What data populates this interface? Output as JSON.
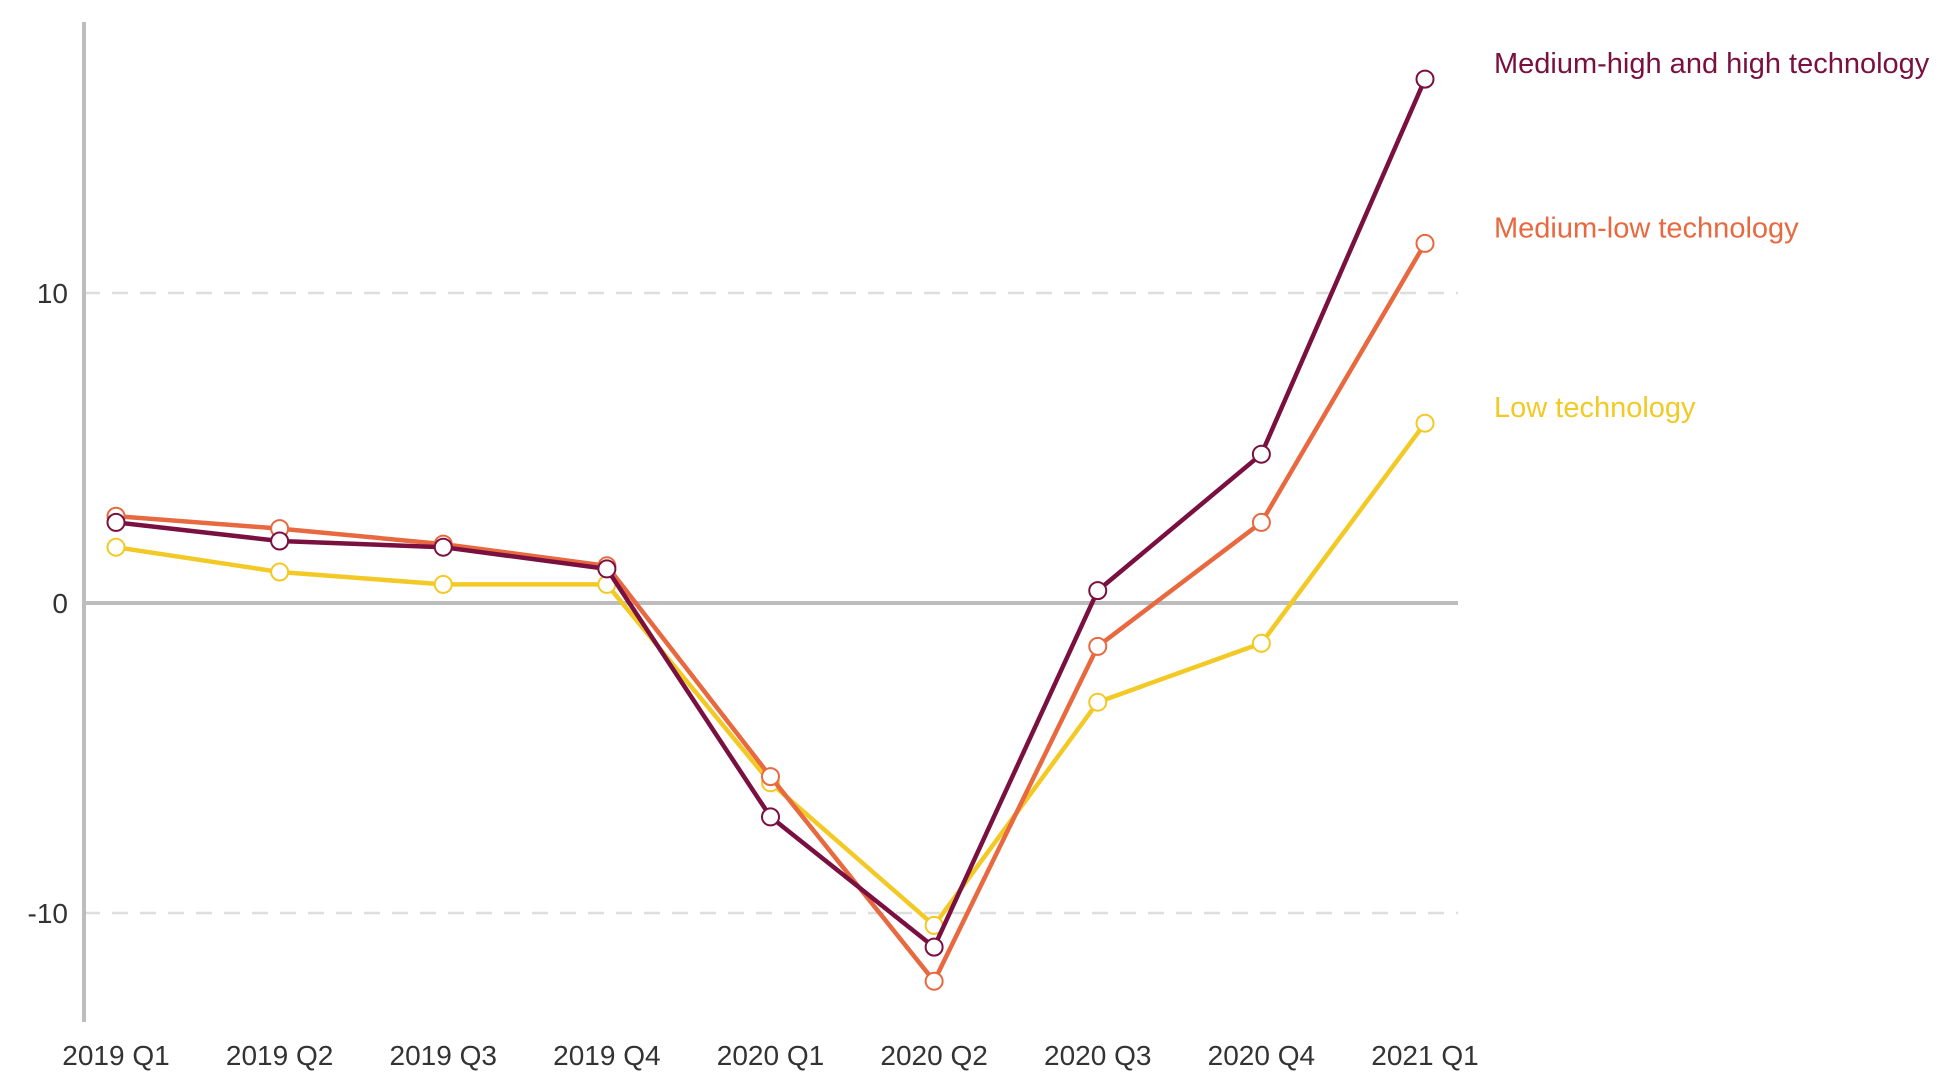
{
  "chart_data": {
    "type": "line",
    "title": "",
    "xlabel": "",
    "ylabel": "",
    "categories": [
      "2019 Q1",
      "2019 Q2",
      "2019 Q3",
      "2019 Q4",
      "2020 Q1",
      "2020 Q2",
      "2020 Q3",
      "2020 Q4",
      "2021 Q1"
    ],
    "ylim": [
      -13.5,
      18.8
    ],
    "y_ticks": [
      -10,
      0,
      10
    ],
    "y_tick_labels": [
      "-10",
      "0",
      "10"
    ],
    "grid": "dashed horizontal at ±10, solid zero line",
    "legend": "direct labels at line ends (right)",
    "series": [
      {
        "name": "Medium-high and high technology",
        "color": "#7a1040",
        "values": [
          2.6,
          2.0,
          1.8,
          1.1,
          -6.9,
          -11.1,
          0.4,
          4.8,
          16.9
        ]
      },
      {
        "name": "Medium-low technology",
        "color": "#e8683f",
        "values": [
          2.8,
          2.4,
          1.9,
          1.2,
          -5.6,
          -12.2,
          -1.4,
          2.6,
          11.6
        ]
      },
      {
        "name": "Low technology",
        "color": "#f2c925",
        "values": [
          1.8,
          1.0,
          0.6,
          0.6,
          -5.8,
          -10.4,
          -3.2,
          -1.3,
          5.8
        ]
      }
    ]
  }
}
